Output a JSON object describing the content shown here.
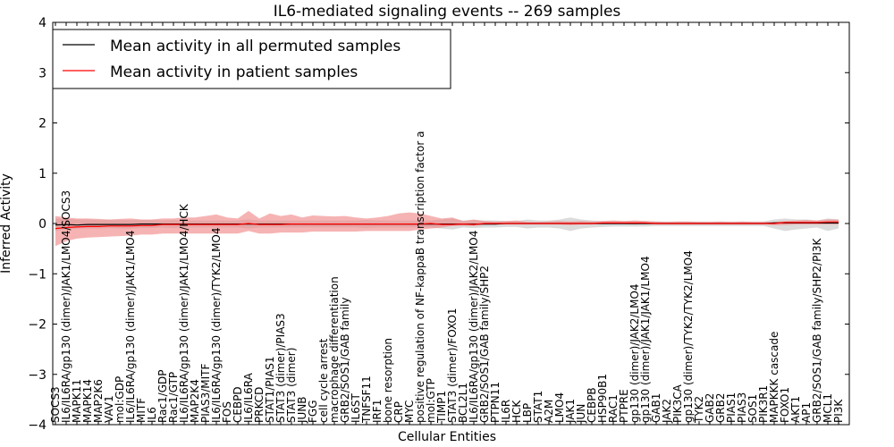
{
  "chart_data": {
    "type": "line",
    "title": "IL6-mediated signaling events -- 269 samples",
    "xlabel": "Cellular Entities",
    "ylabel": "Inferred Activity",
    "ylim": [
      -4,
      4
    ],
    "yticks": [
      -4,
      -3,
      -2,
      -1,
      0,
      1,
      2,
      3,
      4
    ],
    "legend_position": "top-left",
    "categories": [
      "SOCS3",
      "IL6/IL6RA/gp130 (dimer)/JAK1/LMO4/SOCS3",
      "MAPK11",
      "MAPK14",
      "MAP2K6",
      "VAV1",
      "mol:GDP",
      "IL6/IL6RA/gp130 (dimer)/JAK1/LMO4",
      "MITF",
      "IL6",
      "Rac1/GDP",
      "Rac1/GTP",
      "IL6/IL6RA/gp130 (dimer)/JAK1/LMO4/HCK",
      "MAP2K4",
      "PIAS3/MITF",
      "IL6/IL6RA/gp130 (dimer)/TYK2/LMO4",
      "FOS",
      "CEBPD",
      "IL6/IL6RA",
      "PRKCD",
      "STAT1/PIAS1",
      "STAT3 (dimer)/PIAS3",
      "STAT3 (dimer)",
      "JUNB",
      "FGG",
      "cell cycle arrest",
      "macrophage differentiation",
      "GRB2/SOS1/GAB family",
      "IL6ST",
      "TNFSF11",
      "IRF1",
      "bone resorption",
      "CRP",
      "MYC",
      "positive regulation of NF-kappaB transcription factor a",
      "mol:GTP",
      "TIMP1",
      "STAT3 (dimer)/FOXO1",
      "BCL2L1",
      "IL6/IL6RA/gp130 (dimer)/JAK2/LMO4",
      "GRB2/SOS1/GAB family/SHP2",
      "PTPN11",
      "IL6R",
      "HCK",
      "LBP",
      "STAT1",
      "A2M",
      "LMO4",
      "JAK1",
      "JUN",
      "CEBPB",
      "HSP90B1",
      "RAC1",
      "PTPRE",
      "gp130 (dimer)/JAK2/LMO4",
      "gp130 (dimer)/JAK1/JAK1/LMO4",
      "GAB1",
      "JAK2",
      "PIK3CA",
      "gp130 (dimer)/TYK2/TYK2/LMO4",
      "TYK2",
      "GAB2",
      "GRB2",
      "PIAS1",
      "PIAS3",
      "SOS1",
      "PIK3R1",
      "MAPKKK cascade",
      "FOXO1",
      "AKT1",
      "AP1",
      "GRB2/SOS1/GAB family/SHP2/PI3K",
      "MCL1",
      "PI3K"
    ],
    "series": [
      {
        "name": "Mean activity in all permuted samples",
        "color": "#000000",
        "values": [
          -0.03,
          -0.02,
          -0.03,
          -0.02,
          -0.02,
          -0.02,
          -0.02,
          -0.02,
          -0.01,
          -0.01,
          -0.01,
          -0.01,
          -0.01,
          -0.01,
          -0.01,
          -0.01,
          -0.01,
          -0.01,
          -0.01,
          -0.01,
          -0.01,
          -0.01,
          -0.01,
          -0.01,
          -0.01,
          -0.01,
          -0.01,
          -0.01,
          -0.01,
          -0.01,
          -0.01,
          -0.01,
          -0.01,
          -0.01,
          -0.01,
          -0.01,
          -0.01,
          -0.01,
          -0.01,
          -0.01,
          -0.01,
          -0.01,
          0.0,
          0.0,
          0.0,
          0.0,
          0.0,
          0.0,
          0.0,
          0.0,
          0.0,
          0.0,
          0.0,
          0.0,
          0.0,
          0.0,
          0.0,
          0.0,
          0.0,
          0.0,
          0.0,
          0.0,
          0.0,
          0.0,
          0.0,
          0.0,
          0.0,
          0.01,
          0.01,
          0.01,
          0.01,
          0.01,
          0.01,
          0.01
        ],
        "band_low": [
          -0.15,
          -0.12,
          -0.1,
          -0.1,
          -0.1,
          -0.09,
          -0.1,
          -0.1,
          -0.09,
          -0.09,
          -0.08,
          -0.09,
          -0.08,
          -0.08,
          -0.08,
          -0.08,
          -0.08,
          -0.08,
          -0.1,
          -0.08,
          -0.08,
          -0.08,
          -0.08,
          -0.08,
          -0.08,
          -0.08,
          -0.08,
          -0.08,
          -0.08,
          -0.09,
          -0.08,
          -0.08,
          -0.08,
          -0.08,
          -0.08,
          -0.08,
          -0.1,
          -0.12,
          -0.08,
          -0.09,
          -0.08,
          -0.08,
          -0.07,
          -0.07,
          -0.1,
          -0.08,
          -0.08,
          -0.1,
          -0.15,
          -0.1,
          -0.08,
          -0.07,
          -0.06,
          -0.06,
          -0.06,
          -0.06,
          -0.05,
          -0.05,
          -0.05,
          -0.05,
          -0.05,
          -0.05,
          -0.05,
          -0.05,
          -0.05,
          -0.05,
          -0.05,
          -0.1,
          -0.15,
          -0.12,
          -0.1,
          -0.08,
          -0.15,
          -0.1
        ],
        "band_high": [
          0.1,
          0.09,
          0.08,
          0.08,
          0.07,
          0.07,
          0.07,
          0.07,
          0.07,
          0.07,
          0.06,
          0.07,
          0.06,
          0.06,
          0.06,
          0.06,
          0.06,
          0.06,
          0.08,
          0.06,
          0.06,
          0.06,
          0.06,
          0.06,
          0.06,
          0.06,
          0.06,
          0.06,
          0.06,
          0.07,
          0.06,
          0.06,
          0.06,
          0.06,
          0.06,
          0.06,
          0.08,
          0.1,
          0.06,
          0.07,
          0.06,
          0.06,
          0.05,
          0.05,
          0.08,
          0.06,
          0.06,
          0.08,
          0.12,
          0.08,
          0.06,
          0.05,
          0.05,
          0.05,
          0.05,
          0.05,
          0.04,
          0.04,
          0.04,
          0.04,
          0.04,
          0.04,
          0.04,
          0.04,
          0.04,
          0.04,
          0.04,
          0.08,
          0.1,
          0.08,
          0.08,
          0.06,
          0.1,
          0.08
        ]
      },
      {
        "name": "Mean activity in patient samples",
        "color": "#ff0000",
        "values": [
          -0.1,
          -0.08,
          -0.07,
          -0.06,
          -0.06,
          -0.05,
          -0.05,
          -0.05,
          -0.04,
          -0.04,
          -0.02,
          -0.02,
          -0.02,
          -0.02,
          -0.02,
          -0.02,
          -0.02,
          -0.02,
          0.0,
          -0.02,
          -0.02,
          -0.02,
          -0.01,
          -0.01,
          -0.01,
          -0.01,
          -0.01,
          -0.01,
          -0.01,
          -0.01,
          -0.01,
          -0.01,
          -0.01,
          -0.01,
          -0.01,
          0.0,
          -0.02,
          -0.02,
          -0.01,
          -0.02,
          0.0,
          0.0,
          0.0,
          0.0,
          0.0,
          0.0,
          0.0,
          0.0,
          0.0,
          0.0,
          0.0,
          0.01,
          0.01,
          0.01,
          0.01,
          0.01,
          0.0,
          0.0,
          0.0,
          0.0,
          0.0,
          0.0,
          0.0,
          0.0,
          0.0,
          0.0,
          0.0,
          0.0,
          0.02,
          0.02,
          0.02,
          0.02,
          0.03,
          0.03
        ],
        "band_low": [
          -0.45,
          -0.35,
          -0.3,
          -0.28,
          -0.27,
          -0.26,
          -0.25,
          -0.24,
          -0.22,
          -0.22,
          -0.2,
          -0.2,
          -0.2,
          -0.2,
          -0.2,
          -0.2,
          -0.2,
          -0.2,
          -0.15,
          -0.2,
          -0.2,
          -0.18,
          -0.18,
          -0.18,
          -0.16,
          -0.16,
          -0.16,
          -0.16,
          -0.16,
          -0.15,
          -0.15,
          -0.15,
          -0.15,
          -0.15,
          -0.12,
          -0.1,
          -0.08,
          -0.05,
          -0.04,
          -0.05,
          -0.02,
          -0.02,
          -0.02,
          -0.02,
          -0.02,
          -0.02,
          -0.02,
          -0.02,
          -0.03,
          -0.02,
          -0.02,
          -0.01,
          -0.01,
          -0.01,
          -0.02,
          -0.01,
          -0.02,
          -0.02,
          -0.02,
          -0.02,
          -0.02,
          -0.02,
          -0.02,
          -0.02,
          -0.02,
          -0.02,
          -0.02,
          -0.03,
          -0.03,
          -0.02,
          -0.02,
          -0.02,
          -0.02,
          -0.02
        ],
        "band_high": [
          0.15,
          0.12,
          0.1,
          0.1,
          0.09,
          0.08,
          0.09,
          0.1,
          0.08,
          0.08,
          0.1,
          0.1,
          0.12,
          0.12,
          0.15,
          0.18,
          0.12,
          0.1,
          0.25,
          0.1,
          0.2,
          0.15,
          0.18,
          0.12,
          0.16,
          0.15,
          0.14,
          0.15,
          0.12,
          0.1,
          0.12,
          0.15,
          0.2,
          0.22,
          0.2,
          0.15,
          0.1,
          0.12,
          0.05,
          0.08,
          0.05,
          0.04,
          0.05,
          0.06,
          0.03,
          0.03,
          0.04,
          0.05,
          0.04,
          0.05,
          0.04,
          0.05,
          0.06,
          0.05,
          0.06,
          0.05,
          0.04,
          0.03,
          0.04,
          0.04,
          0.03,
          0.03,
          0.04,
          0.03,
          0.04,
          0.03,
          0.03,
          0.03,
          0.05,
          0.06,
          0.07,
          0.06,
          0.08,
          0.08
        ]
      }
    ]
  }
}
